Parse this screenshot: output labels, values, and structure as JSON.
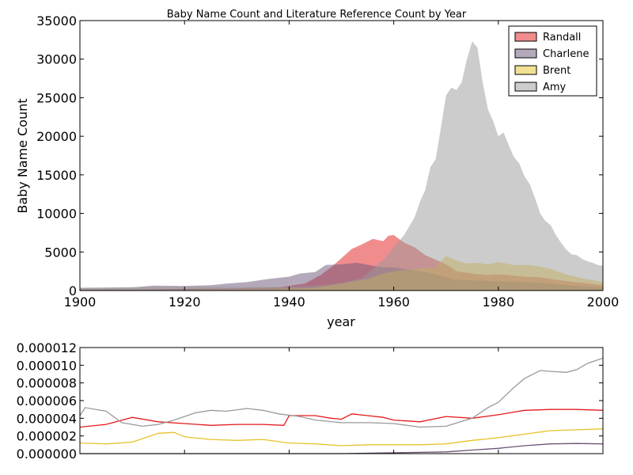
{
  "chart_data": [
    {
      "type": "area",
      "title": "Baby Name Count and Literature Reference Count by Year",
      "xlabel": "year",
      "ylabel": "Baby Name Count",
      "xlim": [
        1900,
        2000
      ],
      "ylim": [
        0,
        35000
      ],
      "xticks": [
        "1900",
        "1920",
        "1940",
        "1960",
        "1980",
        "2000"
      ],
      "yticks": [
        "0",
        "5000",
        "10000",
        "15000",
        "20000",
        "25000",
        "30000",
        "35000"
      ],
      "grid": false,
      "legend_placement": "top-right",
      "colors": {
        "Randall": "#e41a1c",
        "Charlene": "#6a5378",
        "Brent": "#e6c229",
        "Amy": "#999999"
      },
      "series": [
        {
          "name": "Randall",
          "points": [
            [
              1900,
              120
            ],
            [
              1910,
              140
            ],
            [
              1920,
              220
            ],
            [
              1930,
              300
            ],
            [
              1938,
              400
            ],
            [
              1943,
              900
            ],
            [
              1946,
              2000
            ],
            [
              1948,
              3000
            ],
            [
              1950,
              4200
            ],
            [
              1952,
              5400
            ],
            [
              1954,
              6000
            ],
            [
              1956,
              6700
            ],
            [
              1958,
              6400
            ],
            [
              1959,
              7100
            ],
            [
              1960,
              7200
            ],
            [
              1962,
              6200
            ],
            [
              1964,
              5600
            ],
            [
              1966,
              4600
            ],
            [
              1968,
              4000
            ],
            [
              1970,
              3400
            ],
            [
              1972,
              2500
            ],
            [
              1975,
              2200
            ],
            [
              1978,
              2000
            ],
            [
              1980,
              2100
            ],
            [
              1982,
              2000
            ],
            [
              1985,
              1800
            ],
            [
              1988,
              1700
            ],
            [
              1990,
              1500
            ],
            [
              1993,
              1200
            ],
            [
              1996,
              1000
            ],
            [
              2000,
              700
            ]
          ]
        },
        {
          "name": "Charlene",
          "points": [
            [
              1900,
              300
            ],
            [
              1910,
              400
            ],
            [
              1914,
              650
            ],
            [
              1920,
              600
            ],
            [
              1925,
              700
            ],
            [
              1928,
              900
            ],
            [
              1932,
              1100
            ],
            [
              1936,
              1500
            ],
            [
              1940,
              1800
            ],
            [
              1942,
              2200
            ],
            [
              1945,
              2400
            ],
            [
              1947,
              3300
            ],
            [
              1950,
              3400
            ],
            [
              1953,
              3600
            ],
            [
              1956,
              3200
            ],
            [
              1958,
              3000
            ],
            [
              1960,
              3000
            ],
            [
              1962,
              2800
            ],
            [
              1965,
              2500
            ],
            [
              1968,
              2100
            ],
            [
              1970,
              1700
            ],
            [
              1972,
              1400
            ],
            [
              1975,
              1300
            ],
            [
              1980,
              1200
            ],
            [
              1985,
              1100
            ],
            [
              1990,
              900
            ],
            [
              1995,
              600
            ],
            [
              2000,
              400
            ]
          ]
        },
        {
          "name": "Brent",
          "points": [
            [
              1900,
              60
            ],
            [
              1910,
              80
            ],
            [
              1920,
              100
            ],
            [
              1930,
              150
            ],
            [
              1940,
              250
            ],
            [
              1945,
              350
            ],
            [
              1950,
              900
            ],
            [
              1955,
              1500
            ],
            [
              1958,
              2200
            ],
            [
              1960,
              2500
            ],
            [
              1963,
              2700
            ],
            [
              1966,
              2900
            ],
            [
              1968,
              3000
            ],
            [
              1970,
              4500
            ],
            [
              1972,
              3900
            ],
            [
              1974,
              3500
            ],
            [
              1976,
              3600
            ],
            [
              1978,
              3400
            ],
            [
              1980,
              3700
            ],
            [
              1983,
              3300
            ],
            [
              1986,
              3300
            ],
            [
              1988,
              3100
            ],
            [
              1990,
              2800
            ],
            [
              1993,
              2100
            ],
            [
              1996,
              1600
            ],
            [
              2000,
              1100
            ]
          ]
        },
        {
          "name": "Amy",
          "points": [
            [
              1900,
              400
            ],
            [
              1910,
              450
            ],
            [
              1920,
              500
            ],
            [
              1930,
              500
            ],
            [
              1940,
              500
            ],
            [
              1945,
              600
            ],
            [
              1950,
              1000
            ],
            [
              1954,
              1600
            ],
            [
              1956,
              2800
            ],
            [
              1958,
              4000
            ],
            [
              1960,
              5600
            ],
            [
              1962,
              7200
            ],
            [
              1964,
              9500
            ],
            [
              1965,
              11500
            ],
            [
              1966,
              13000
            ],
            [
              1967,
              16000
            ],
            [
              1968,
              17000
            ],
            [
              1969,
              21000
            ],
            [
              1970,
              25300
            ],
            [
              1971,
              26300
            ],
            [
              1972,
              26000
            ],
            [
              1973,
              27000
            ],
            [
              1974,
              30000
            ],
            [
              1975,
              32300
            ],
            [
              1976,
              31500
            ],
            [
              1977,
              27000
            ],
            [
              1978,
              23500
            ],
            [
              1979,
              22000
            ],
            [
              1980,
              20000
            ],
            [
              1981,
              20500
            ],
            [
              1982,
              18800
            ],
            [
              1983,
              17300
            ],
            [
              1984,
              16500
            ],
            [
              1985,
              14800
            ],
            [
              1986,
              13800
            ],
            [
              1987,
              12000
            ],
            [
              1988,
              10000
            ],
            [
              1989,
              9000
            ],
            [
              1990,
              8500
            ],
            [
              1991,
              7200
            ],
            [
              1992,
              6200
            ],
            [
              1993,
              5300
            ],
            [
              1994,
              4700
            ],
            [
              1995,
              4600
            ],
            [
              1996,
              4100
            ],
            [
              1997,
              3800
            ],
            [
              1998,
              3600
            ],
            [
              1999,
              3300
            ],
            [
              2000,
              3200
            ]
          ]
        }
      ]
    },
    {
      "type": "line",
      "title": "",
      "xlabel": "",
      "ylabel": "",
      "xlim": [
        1900,
        2000
      ],
      "ylim": [
        0,
        1.2e-05
      ],
      "yticks": [
        "0.000000",
        "0.000002",
        "0.000004",
        "0.000006",
        "0.000008",
        "0.000010",
        "0.000012"
      ],
      "grid": false,
      "series": [
        {
          "name": "Randall",
          "points": [
            [
              1900,
              3e-06
            ],
            [
              1905,
              3.3e-06
            ],
            [
              1910,
              4.1e-06
            ],
            [
              1915,
              3.6e-06
            ],
            [
              1920,
              3.4e-06
            ],
            [
              1925,
              3.2e-06
            ],
            [
              1930,
              3.3e-06
            ],
            [
              1935,
              3.3e-06
            ],
            [
              1939,
              3.2e-06
            ],
            [
              1940,
              4.3e-06
            ],
            [
              1945,
              4.3e-06
            ],
            [
              1948,
              4e-06
            ],
            [
              1950,
              3.9e-06
            ],
            [
              1952,
              4.5e-06
            ],
            [
              1955,
              4.3e-06
            ],
            [
              1958,
              4.1e-06
            ],
            [
              1960,
              3.8e-06
            ],
            [
              1965,
              3.6e-06
            ],
            [
              1970,
              4.2e-06
            ],
            [
              1975,
              4e-06
            ],
            [
              1980,
              4.4e-06
            ],
            [
              1985,
              4.9e-06
            ],
            [
              1990,
              5e-06
            ],
            [
              1995,
              5e-06
            ],
            [
              2000,
              4.9e-06
            ]
          ]
        },
        {
          "name": "Charlene",
          "points": [
            [
              1900,
              0
            ],
            [
              1950,
              0
            ],
            [
              1960,
              1e-07
            ],
            [
              1970,
              2e-07
            ],
            [
              1975,
              4e-07
            ],
            [
              1980,
              6e-07
            ],
            [
              1985,
              9e-07
            ],
            [
              1990,
              1.1e-06
            ],
            [
              1995,
              1.15e-06
            ],
            [
              2000,
              1.1e-06
            ]
          ]
        },
        {
          "name": "Brent",
          "points": [
            [
              1900,
              1.2e-06
            ],
            [
              1905,
              1.1e-06
            ],
            [
              1910,
              1.3e-06
            ],
            [
              1915,
              2.3e-06
            ],
            [
              1918,
              2.4e-06
            ],
            [
              1920,
              1.9e-06
            ],
            [
              1925,
              1.6e-06
            ],
            [
              1930,
              1.5e-06
            ],
            [
              1935,
              1.6e-06
            ],
            [
              1940,
              1.2e-06
            ],
            [
              1945,
              1.1e-06
            ],
            [
              1950,
              9e-07
            ],
            [
              1955,
              1e-06
            ],
            [
              1960,
              1e-06
            ],
            [
              1965,
              1e-06
            ],
            [
              1970,
              1.1e-06
            ],
            [
              1975,
              1.5e-06
            ],
            [
              1980,
              1.8e-06
            ],
            [
              1985,
              2.2e-06
            ],
            [
              1990,
              2.6e-06
            ],
            [
              1995,
              2.7e-06
            ],
            [
              2000,
              2.8e-06
            ]
          ]
        },
        {
          "name": "Amy",
          "points": [
            [
              1900,
              4.3e-06
            ],
            [
              1901,
              5.2e-06
            ],
            [
              1905,
              4.8e-06
            ],
            [
              1908,
              3.5e-06
            ],
            [
              1912,
              3.1e-06
            ],
            [
              1915,
              3.3e-06
            ],
            [
              1918,
              3.8e-06
            ],
            [
              1922,
              4.6e-06
            ],
            [
              1925,
              4.9e-06
            ],
            [
              1928,
              4.8e-06
            ],
            [
              1932,
              5.1e-06
            ],
            [
              1935,
              4.9e-06
            ],
            [
              1938,
              4.5e-06
            ],
            [
              1942,
              4.2e-06
            ],
            [
              1945,
              3.8e-06
            ],
            [
              1950,
              3.5e-06
            ],
            [
              1955,
              3.5e-06
            ],
            [
              1960,
              3.4e-06
            ],
            [
              1965,
              3e-06
            ],
            [
              1970,
              3.1e-06
            ],
            [
              1975,
              4e-06
            ],
            [
              1978,
              5.2e-06
            ],
            [
              1980,
              5.8e-06
            ],
            [
              1983,
              7.5e-06
            ],
            [
              1985,
              8.5e-06
            ],
            [
              1988,
              9.4e-06
            ],
            [
              1990,
              9.3e-06
            ],
            [
              1993,
              9.2e-06
            ],
            [
              1995,
              9.5e-06
            ],
            [
              1997,
              1.02e-05
            ],
            [
              2000,
              1.08e-05
            ]
          ]
        }
      ]
    }
  ]
}
